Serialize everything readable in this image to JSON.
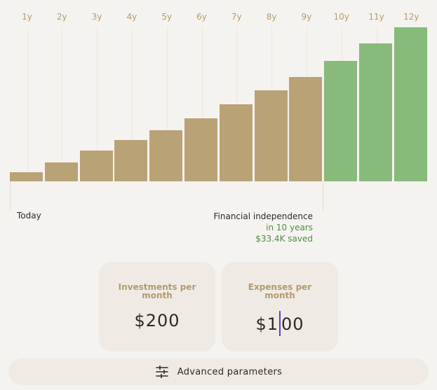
{
  "chart_data": {
    "type": "bar",
    "categories": [
      "1y",
      "2y",
      "3y",
      "4y",
      "5y",
      "6y",
      "7y",
      "8y",
      "9y",
      "10y",
      "11y",
      "12y"
    ],
    "values": [
      5.2,
      11.1,
      17.8,
      24.0,
      30.0,
      37.0,
      45.0,
      53.0,
      61.0,
      70.5,
      80.5,
      90.0
    ],
    "ylim": [
      0,
      90
    ],
    "independence_from_index": 9,
    "colors": {
      "saving": "#b9a275",
      "independence": "#87ba7b",
      "year_label": "#b39a6e"
    }
  },
  "timeline": {
    "start_label": "Today",
    "independence_title": "Financial independence",
    "independence_years": "in 10 years",
    "independence_saved": "$33.4K saved"
  },
  "cards": {
    "investments": {
      "title_line1": "Investments per",
      "title_line2": "month",
      "value": "$200"
    },
    "expenses": {
      "title_line1": "Expenses per",
      "title_line2": "month",
      "value_before_caret": "$1",
      "value_after_caret": "00"
    }
  },
  "advanced": {
    "label": "Advanced parameters",
    "icon": "sliders-icon"
  },
  "colors": {
    "accent_green": "#4f8f43",
    "caret": "#5b3fd1",
    "card_bg": "#efebe4"
  }
}
